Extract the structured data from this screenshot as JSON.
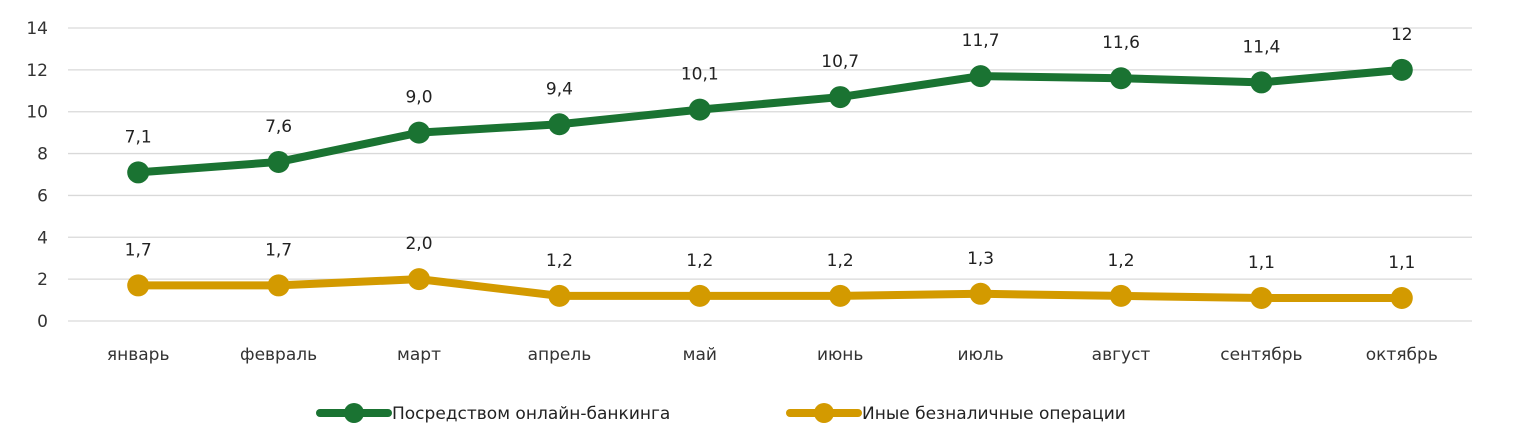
{
  "chart_data": {
    "type": "line",
    "title": "",
    "xlabel": "",
    "ylabel": "",
    "ylim": [
      0,
      14
    ],
    "yticks": [
      0,
      2,
      4,
      6,
      8,
      10,
      12,
      14
    ],
    "grid": true,
    "legend_position": "bottom",
    "categories": [
      "январь",
      "февраль",
      "март",
      "апрель",
      "май",
      "июнь",
      "июль",
      "август",
      "сентябрь",
      "октябрь"
    ],
    "series": [
      {
        "name": "Посредством онлайн-банкинга",
        "color": "#1a7332",
        "values": [
          7.1,
          7.6,
          9.0,
          9.4,
          10.1,
          10.7,
          11.7,
          11.6,
          11.4,
          12
        ],
        "labels": [
          "7,1",
          "7,6",
          "9,0",
          "9,4",
          "10,1",
          "10,7",
          "11,7",
          "11,6",
          "11,4",
          "12"
        ]
      },
      {
        "name": "Иные безналичные операции",
        "color": "#d39a00",
        "values": [
          1.7,
          1.7,
          2.0,
          1.2,
          1.2,
          1.2,
          1.3,
          1.2,
          1.1,
          1.1
        ],
        "labels": [
          "1,7",
          "1,7",
          "2,0",
          "1,2",
          "1,2",
          "1,2",
          "1,3",
          "1,2",
          "1,1",
          "1,1"
        ]
      }
    ]
  }
}
